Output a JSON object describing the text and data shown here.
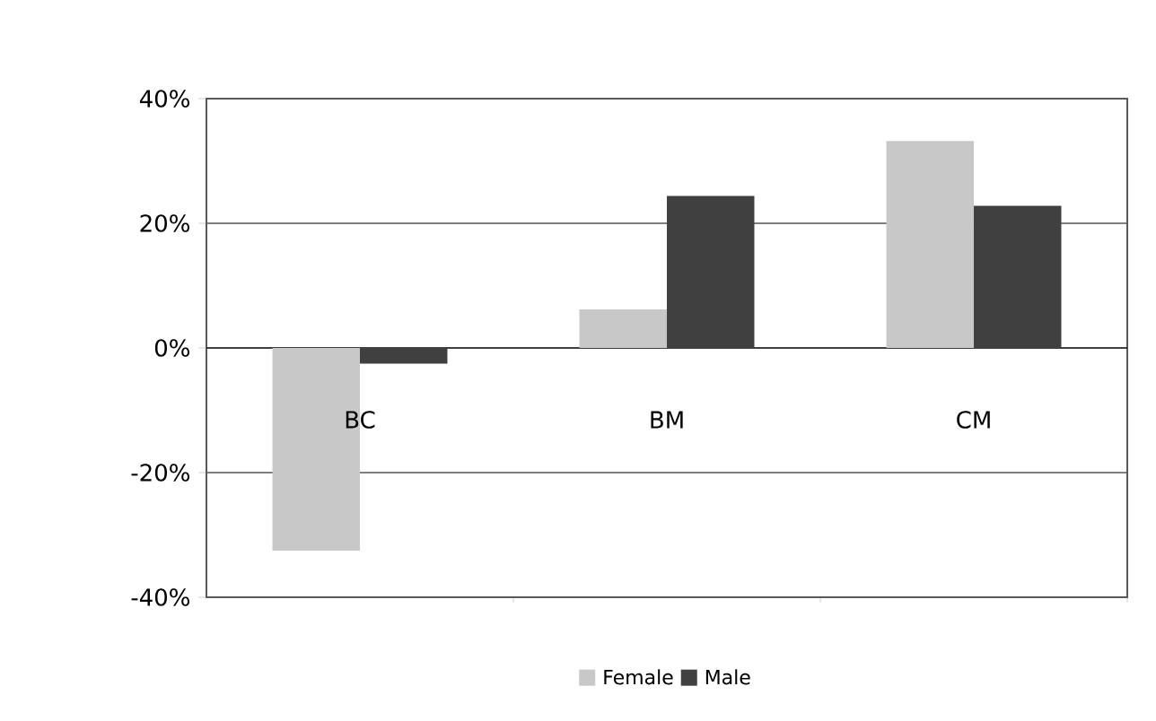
{
  "chart_data": {
    "type": "bar",
    "categories": [
      "BC",
      "BM",
      "CM"
    ],
    "series": [
      {
        "name": "Female",
        "color": "#c8c8c8",
        "values": [
          -32.5,
          6.2,
          33.2
        ]
      },
      {
        "name": "Male",
        "color": "#404040",
        "values": [
          -2.5,
          24.4,
          22.8
        ]
      }
    ],
    "ylim": [
      -40,
      40
    ],
    "yticks": [
      {
        "value": -40,
        "label": "-40%"
      },
      {
        "value": -20,
        "label": "-20%"
      },
      {
        "value": 0,
        "label": "0%"
      },
      {
        "value": 20,
        "label": "20%"
      },
      {
        "value": 40,
        "label": "40%"
      }
    ],
    "grid": "y",
    "legend": "bottom"
  }
}
